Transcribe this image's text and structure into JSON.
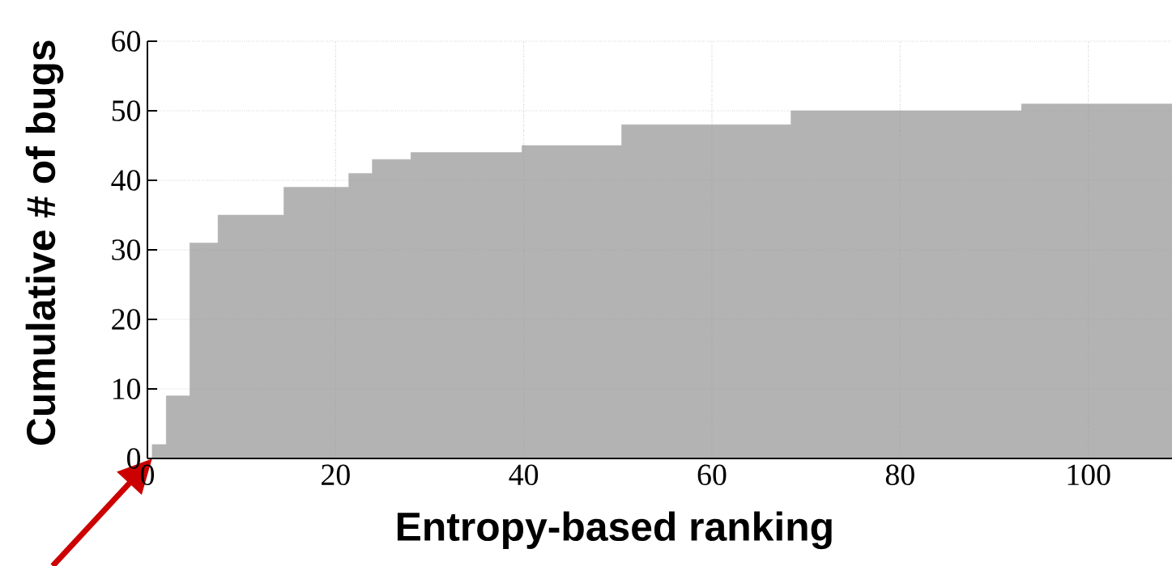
{
  "chart_data": {
    "type": "area",
    "xlabel": "Entropy-based ranking",
    "ylabel": "Cumulative # of bugs",
    "x": [
      0.5,
      2,
      2,
      4.5,
      4.5,
      7.5,
      7.5,
      14.5,
      14.5,
      21.4,
      21.4,
      23.9,
      23.9,
      28,
      28,
      39.8,
      39.8,
      50.4,
      50.4,
      68.4,
      68.4,
      92.9,
      92.9,
      108.9
    ],
    "values": [
      2,
      2,
      9,
      9,
      31,
      31,
      35,
      35,
      39,
      39,
      41,
      41,
      43,
      43,
      44,
      44,
      45,
      45,
      48,
      48,
      50,
      50,
      51,
      51
    ],
    "color": "#b3b3b3",
    "xlim": [
      0,
      108.9
    ],
    "ylim": [
      0,
      60
    ],
    "xticks": [
      0,
      20,
      40,
      60,
      80,
      100
    ],
    "yticks": [
      0,
      10,
      20,
      30,
      40,
      50,
      60
    ],
    "grid": true
  }
}
